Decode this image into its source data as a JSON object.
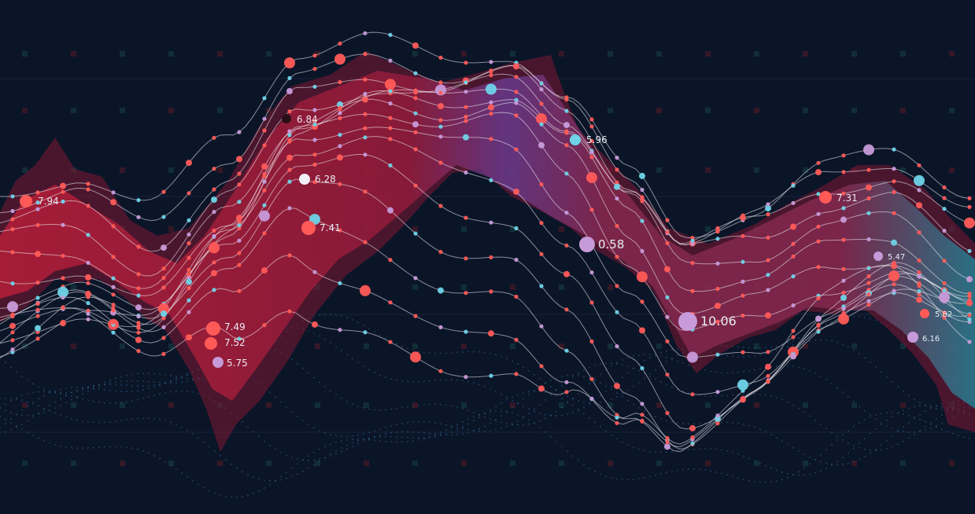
{
  "chart_data": {
    "type": "line",
    "title": "",
    "xlabel": "",
    "ylabel": "",
    "grid": true,
    "legend": "none",
    "colors": {
      "background": "#0b1528",
      "band_red": "#b81f3f",
      "band_purple": "#7a4fb4",
      "band_teal": "#2aa3b8",
      "point_red": "#ff5a57",
      "point_cyan": "#6fd3e8",
      "point_lilac": "#c79ad9",
      "line": "#f2f0f6"
    },
    "annotations": [
      {
        "text": "7.94",
        "id": "a1"
      },
      {
        "text": "6.84",
        "id": "a2"
      },
      {
        "text": "6.28",
        "id": "a3"
      },
      {
        "text": "7.41",
        "id": "a4"
      },
      {
        "text": "7.49",
        "id": "a5"
      },
      {
        "text": "7.52",
        "id": "a6"
      },
      {
        "text": "5.75",
        "id": "a7"
      },
      {
        "text": "5.96",
        "id": "a8"
      },
      {
        "text": "0.58",
        "id": "a9"
      },
      {
        "text": "10.06",
        "id": "a10"
      },
      {
        "text": "7.31",
        "id": "a11"
      },
      {
        "text": "5.47",
        "id": "a12"
      },
      {
        "text": "6.16",
        "id": "a13"
      },
      {
        "text": "5.82",
        "id": "a14"
      }
    ]
  }
}
